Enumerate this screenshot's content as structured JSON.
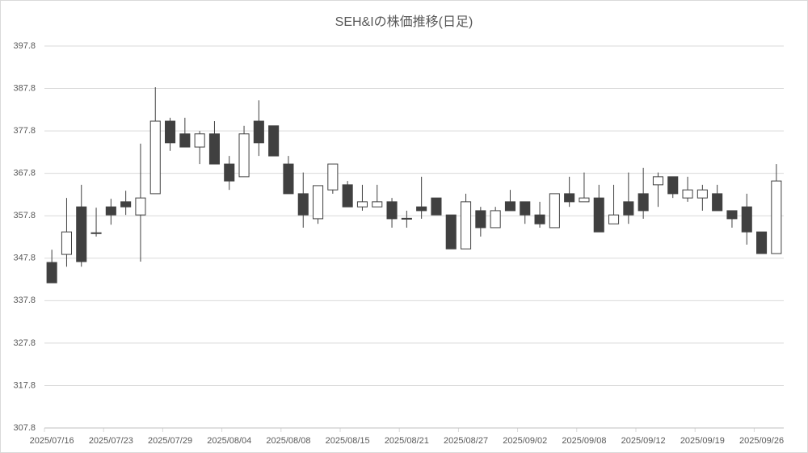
{
  "chart_data": {
    "type": "candlestick",
    "title": "SEH&Iの株価推移(日足)",
    "categories": [
      "2025/07/16",
      null,
      null,
      null,
      "2025/07/23",
      null,
      null,
      null,
      "2025/07/29",
      null,
      null,
      null,
      "2025/08/04",
      null,
      null,
      null,
      "2025/08/08",
      null,
      null,
      null,
      "2025/08/15",
      null,
      null,
      null,
      "2025/08/21",
      null,
      null,
      null,
      "2025/08/27",
      null,
      null,
      null,
      "2025/09/02",
      null,
      null,
      null,
      "2025/09/08",
      null,
      null,
      null,
      "2025/09/12",
      null,
      null,
      null,
      "2025/09/19",
      null,
      null,
      null,
      "2025/09/26",
      null
    ],
    "open": [
      346.8,
      348.7,
      359.9,
      353.6,
      359.9,
      361.1,
      358.0,
      363.0,
      380.1,
      377.1,
      374.0,
      377.1,
      370.0,
      367.0,
      380.1,
      379.0,
      370.0,
      363.0,
      357.1,
      363.9,
      365.1,
      359.9,
      359.9,
      361.1,
      357.2,
      359.9,
      362.0,
      358.0,
      350.0,
      359.0,
      355.0,
      361.1,
      361.1,
      358.0,
      355.0,
      363.0,
      361.1,
      362.0,
      355.9,
      361.1,
      363.0,
      365.1,
      367.0,
      362.0,
      362.0,
      363.0,
      359.0,
      359.9,
      354.0,
      348.9
    ],
    "high": [
      349.8,
      362.0,
      365.1,
      359.7,
      361.8,
      363.7,
      374.8,
      388.1,
      380.9,
      380.9,
      377.8,
      380.1,
      371.9,
      379.0,
      385.0,
      379.0,
      371.9,
      368.0,
      364.9,
      370.0,
      366.0,
      365.1,
      365.1,
      362.0,
      359.0,
      367.0,
      362.0,
      358.0,
      363.0,
      359.9,
      359.9,
      363.9,
      361.1,
      361.1,
      363.0,
      367.0,
      368.0,
      365.1,
      365.1,
      368.0,
      369.1,
      368.0,
      367.0,
      367.0,
      365.1,
      365.1,
      359.0,
      363.0,
      354.0,
      370.0
    ],
    "low": [
      342.0,
      345.8,
      345.8,
      352.9,
      355.7,
      358.0,
      347.0,
      363.0,
      373.1,
      374.0,
      370.0,
      370.0,
      363.9,
      367.0,
      371.9,
      371.9,
      363.0,
      355.0,
      355.9,
      363.0,
      359.9,
      359.0,
      359.9,
      355.0,
      355.0,
      357.1,
      358.0,
      350.0,
      350.0,
      352.9,
      355.0,
      359.0,
      355.9,
      355.0,
      355.0,
      359.9,
      361.1,
      354.0,
      355.9,
      355.9,
      357.1,
      359.9,
      362.0,
      361.1,
      359.0,
      359.0,
      355.0,
      351.0,
      348.9,
      348.9
    ],
    "close": [
      342.0,
      354.0,
      347.0,
      353.8,
      358.0,
      359.9,
      362.0,
      380.1,
      375.0,
      374.0,
      377.1,
      370.0,
      366.0,
      377.1,
      375.0,
      371.9,
      363.0,
      358.0,
      364.9,
      370.0,
      359.9,
      361.1,
      361.1,
      357.1,
      357.0,
      359.0,
      358.0,
      350.0,
      361.1,
      355.0,
      359.0,
      359.0,
      358.0,
      355.9,
      363.0,
      361.1,
      362.0,
      354.0,
      358.0,
      358.0,
      359.0,
      367.0,
      363.0,
      363.9,
      363.9,
      359.0,
      357.1,
      354.0,
      348.9,
      366.0
    ],
    "up_color": "#ffffff",
    "down_color": "#404040",
    "line_color": "#404040",
    "ylim": [
      307.8,
      397.8
    ],
    "yticks": [
      307.8,
      317.8,
      327.8,
      337.8,
      347.8,
      357.8,
      367.8,
      377.8,
      387.8,
      397.8
    ],
    "grid": true
  }
}
